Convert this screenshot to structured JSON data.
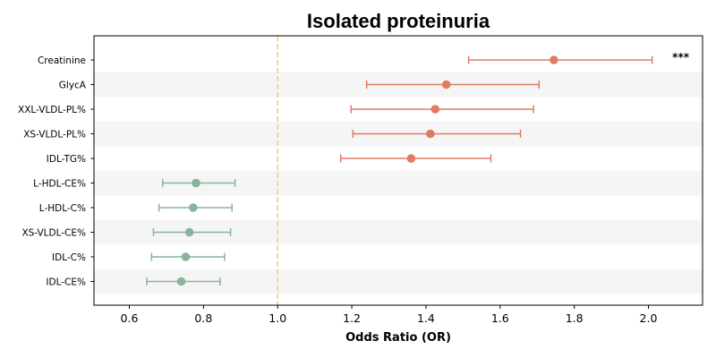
{
  "chart_data": {
    "type": "forest",
    "title": "Isolated proteinuria",
    "xlabel": "Odds Ratio (OR)",
    "xlim": [
      0.52,
      2.15
    ],
    "x_ticks": [
      0.6,
      0.8,
      1.0,
      1.2,
      1.4,
      1.6,
      1.8,
      2.0
    ],
    "x_tick_labels": [
      "0.6",
      "0.8",
      "1.0",
      "1.2",
      "1.4",
      "1.6",
      "1.8",
      "2.0"
    ],
    "reference_line": 1.0,
    "reference_color": "#f6c77a",
    "colors": {
      "positive": "#e07b63",
      "negative": "#85b59b",
      "band": "#f5f5f5"
    },
    "rows": [
      {
        "label": "Creatinine",
        "or": 1.745,
        "lo": 1.515,
        "hi": 2.01,
        "sig": "***"
      },
      {
        "label": "GlycA",
        "or": 1.455,
        "lo": 1.24,
        "hi": 1.705,
        "sig": ""
      },
      {
        "label": "XXL-VLDL-PL%",
        "or": 1.425,
        "lo": 1.198,
        "hi": 1.69,
        "sig": ""
      },
      {
        "label": "XS-VLDL-PL%",
        "or": 1.412,
        "lo": 1.203,
        "hi": 1.655,
        "sig": ""
      },
      {
        "label": "IDL-TG%",
        "or": 1.36,
        "lo": 1.17,
        "hi": 1.575,
        "sig": ""
      },
      {
        "label": "L-HDL-CE%",
        "or": 0.78,
        "lo": 0.69,
        "hi": 0.885,
        "sig": ""
      },
      {
        "label": "L-HDL-C%",
        "or": 0.772,
        "lo": 0.68,
        "hi": 0.877,
        "sig": ""
      },
      {
        "label": "XS-VLDL-CE%",
        "or": 0.762,
        "lo": 0.665,
        "hi": 0.873,
        "sig": ""
      },
      {
        "label": "IDL-C%",
        "or": 0.752,
        "lo": 0.66,
        "hi": 0.857,
        "sig": ""
      },
      {
        "label": "IDL-CE%",
        "or": 0.74,
        "lo": 0.647,
        "hi": 0.845,
        "sig": ""
      }
    ]
  }
}
